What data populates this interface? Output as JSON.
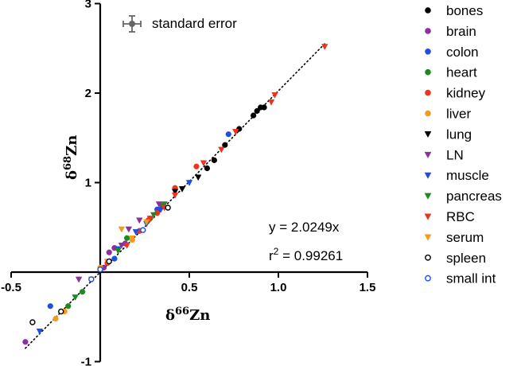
{
  "chart_data": {
    "type": "scatter",
    "title": "",
    "xlabel": {
      "prefix": "δ",
      "sup": "66",
      "main": "Zn"
    },
    "ylabel": {
      "prefix": "δ",
      "sup": "68",
      "main": "Zn"
    },
    "xlim": [
      -0.5,
      1.5
    ],
    "ylim": [
      -1,
      3
    ],
    "xticks": [
      -0.5,
      0.5,
      1.0,
      1.5
    ],
    "xtick_labels": [
      "-0.5",
      "0.5",
      "1.0",
      "1.5"
    ],
    "yticks": [
      -1,
      1,
      2,
      3
    ],
    "ytick_labels": [
      "-1",
      "1",
      "2",
      "3"
    ],
    "grid": false,
    "legend_position": "right",
    "fit": {
      "slope": 2.0249,
      "x_range": [
        -0.42,
        1.26
      ],
      "style": "dotted"
    },
    "annotation_equation": "y = 2.0249x",
    "annotation_r2": {
      "main": "r",
      "sup": "2",
      "rest": " = 0.99261"
    },
    "error_bar_legend": {
      "label": "standard error"
    },
    "series": [
      {
        "name": "bones",
        "marker": "circle",
        "color": "#000000",
        "filled": true,
        "points": [
          [
            0.6,
            1.16
          ],
          [
            0.64,
            1.25
          ],
          [
            0.7,
            1.42
          ],
          [
            0.78,
            1.6
          ],
          [
            0.86,
            1.75
          ],
          [
            0.88,
            1.8
          ],
          [
            0.9,
            1.84
          ],
          [
            0.92,
            1.84
          ]
        ]
      },
      {
        "name": "brain",
        "marker": "circle",
        "color": "#8B2F9C",
        "filled": true,
        "points": [
          [
            -0.42,
            -0.78
          ],
          [
            0.02,
            0.05
          ],
          [
            0.05,
            0.22
          ],
          [
            0.08,
            0.27
          ],
          [
            0.14,
            0.32
          ]
        ]
      },
      {
        "name": "colon",
        "marker": "circle",
        "color": "#1F4FE0",
        "filled": true,
        "points": [
          [
            -0.28,
            -0.38
          ],
          [
            0.08,
            0.15
          ],
          [
            0.32,
            0.7
          ],
          [
            0.72,
            1.54
          ]
        ]
      },
      {
        "name": "heart",
        "marker": "circle",
        "color": "#1E8A1E",
        "filled": true,
        "points": [
          [
            -0.18,
            -0.38
          ],
          [
            -0.1,
            -0.22
          ],
          [
            0.15,
            0.38
          ],
          [
            0.22,
            0.46
          ],
          [
            0.28,
            0.6
          ],
          [
            0.35,
            0.74
          ]
        ]
      },
      {
        "name": "kidney",
        "marker": "circle",
        "color": "#EE3322",
        "filled": true,
        "points": [
          [
            0.04,
            0.1
          ],
          [
            0.22,
            0.46
          ],
          [
            0.27,
            0.58
          ],
          [
            0.32,
            0.66
          ],
          [
            0.42,
            0.94
          ],
          [
            0.54,
            1.18
          ]
        ]
      },
      {
        "name": "liver",
        "marker": "circle",
        "color": "#F59A1A",
        "filled": true,
        "points": [
          [
            -0.2,
            -0.44
          ],
          [
            -0.25,
            -0.52
          ],
          [
            0.0,
            0.05
          ],
          [
            0.18,
            0.36
          ]
        ]
      },
      {
        "name": "lung",
        "marker": "triangle-down",
        "color": "#000000",
        "filled": true,
        "points": [
          [
            0.42,
            0.9
          ],
          [
            0.46,
            0.93
          ],
          [
            0.55,
            1.06
          ]
        ]
      },
      {
        "name": "LN",
        "marker": "triangle-down",
        "color": "#8B2F9C",
        "filled": true,
        "points": [
          [
            -0.12,
            -0.08
          ],
          [
            0.12,
            0.3
          ],
          [
            0.16,
            0.48
          ],
          [
            0.22,
            0.58
          ],
          [
            0.33,
            0.76
          ]
        ]
      },
      {
        "name": "muscle",
        "marker": "triangle-down",
        "color": "#1F4FE0",
        "filled": true,
        "points": [
          [
            -0.34,
            -0.66
          ],
          [
            0.1,
            0.26
          ],
          [
            0.2,
            0.45
          ],
          [
            0.26,
            0.54
          ],
          [
            0.34,
            0.7
          ],
          [
            0.5,
            1.0
          ]
        ]
      },
      {
        "name": "pancreas",
        "marker": "triangle-down",
        "color": "#1E8A1E",
        "filled": true,
        "points": [
          [
            -0.14,
            -0.28
          ],
          [
            0.1,
            0.24
          ],
          [
            0.3,
            0.64
          ],
          [
            0.36,
            0.76
          ]
        ]
      },
      {
        "name": "RBC",
        "marker": "triangle-down",
        "color": "#EE3322",
        "filled": true,
        "points": [
          [
            0.15,
            0.3
          ],
          [
            0.28,
            0.6
          ],
          [
            0.36,
            0.72
          ],
          [
            0.42,
            0.86
          ],
          [
            0.58,
            1.22
          ],
          [
            0.68,
            1.37
          ],
          [
            0.76,
            1.57
          ],
          [
            0.96,
            1.9
          ],
          [
            0.98,
            1.98
          ],
          [
            1.26,
            2.52
          ]
        ]
      },
      {
        "name": "serum",
        "marker": "triangle-down",
        "color": "#F59A1A",
        "filled": true,
        "points": [
          [
            -0.05,
            -0.08
          ],
          [
            0.04,
            0.12
          ],
          [
            0.12,
            0.48
          ],
          [
            0.18,
            0.38
          ],
          [
            0.26,
            0.56
          ]
        ]
      },
      {
        "name": "spleen",
        "marker": "circle",
        "color": "#000000",
        "filled": false,
        "points": [
          [
            -0.38,
            -0.56
          ],
          [
            -0.22,
            -0.44
          ],
          [
            0.05,
            0.12
          ],
          [
            0.38,
            0.72
          ]
        ]
      },
      {
        "name": "small int",
        "marker": "circle",
        "color": "#1F4FE0",
        "filled": false,
        "points": [
          [
            -0.05,
            -0.08
          ],
          [
            0.0,
            0.03
          ],
          [
            0.24,
            0.47
          ]
        ]
      }
    ]
  }
}
